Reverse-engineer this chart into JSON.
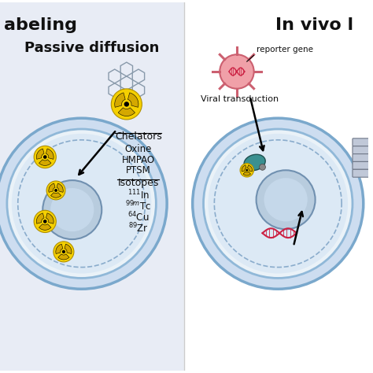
{
  "left_bg": "#e8ecf5",
  "right_bg": "#ffffff",
  "left_title": "Passive diffusion",
  "header_left": "abeling",
  "header_right": "In vivo l",
  "chelators_header": "Chelators",
  "chelators_items": [
    "Oxine",
    "HMPAO",
    "PTSM"
  ],
  "isotopes_header": "Isotopes",
  "isotopes_items": [
    "111In",
    "99mTc",
    "64Cu",
    "89Zr"
  ],
  "reporter_gene_label": "reporter gene",
  "viral_transduction_label": "Viral transduction",
  "radiation_color": "#d4a800",
  "radiation_bg": "#f5d000",
  "viral_color": "#f0a0a8",
  "viral_edge": "#cc6070",
  "dna_color": "#cc2244",
  "teal_blob_color": "#3a9090",
  "teal_blob_edge": "#205050",
  "arrow_color": "#111111",
  "text_color": "#111111",
  "cell_outer_face": "#cdddf0",
  "cell_outer_edge": "#7aa8cc",
  "cell_mid_face": "#eaf2f8",
  "cell_mid_edge": "#90b8d8",
  "cell_inner_face": "#dce9f5",
  "cell_dash_color": "#8aaccc",
  "nucleus_face": "#b8ccde",
  "nucleus_edge": "#7090b0",
  "nucleus_inner": "#c5d8ea",
  "hex_color": "#8899aa",
  "fig_width": 4.74,
  "fig_height": 4.74,
  "dpi": 100
}
